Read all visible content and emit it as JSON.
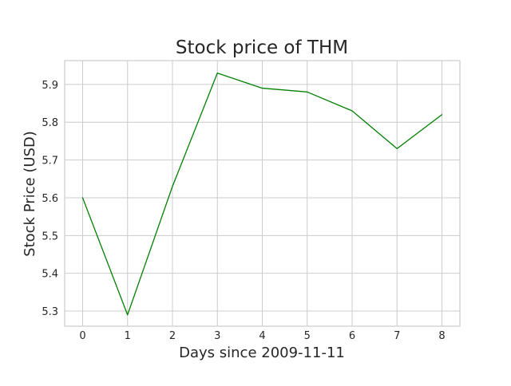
{
  "chart_data": {
    "type": "line",
    "title": "Stock price of THM",
    "xlabel": "Days since 2009-11-11",
    "ylabel": "Stock Price (USD)",
    "x": [
      0,
      1,
      2,
      3,
      4,
      5,
      6,
      7,
      8
    ],
    "series": [
      {
        "values": [
          5.6,
          5.29,
          5.63,
          5.93,
          5.89,
          5.88,
          5.83,
          5.73,
          5.82
        ],
        "color": "#008000"
      }
    ],
    "xlim": [
      -0.4,
      8.4
    ],
    "ylim": [
      5.26,
      5.963
    ],
    "x_ticks": [
      0,
      1,
      2,
      3,
      4,
      5,
      6,
      7,
      8
    ],
    "x_tick_labels": [
      "0",
      "1",
      "2",
      "3",
      "4",
      "5",
      "6",
      "7",
      "8"
    ],
    "y_ticks": [
      5.3,
      5.4,
      5.5,
      5.6,
      5.7,
      5.8,
      5.9
    ],
    "y_tick_labels": [
      "5.3",
      "5.4",
      "5.5",
      "5.6",
      "5.7",
      "5.8",
      "5.9"
    ],
    "grid": true,
    "colors": {
      "grid": "#cccccc",
      "text": "#262626"
    }
  }
}
